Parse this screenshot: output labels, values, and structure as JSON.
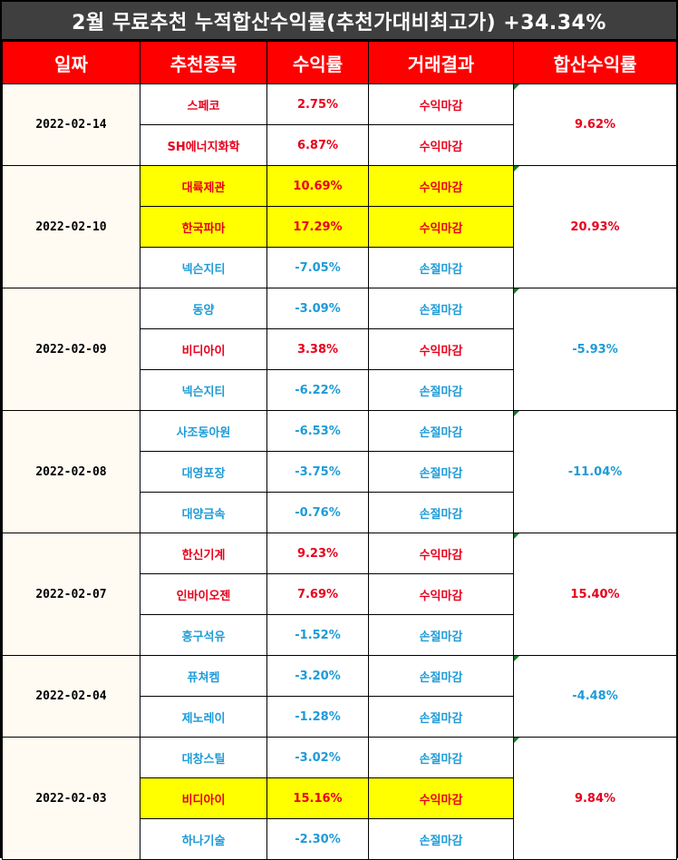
{
  "title": "2월 무료추천 누적합산수익률(추천가대비최고가) +34.34%",
  "headers": [
    "일짜",
    "추천종목",
    "수익률",
    "거래결과",
    "합산수익률"
  ],
  "colors": {
    "red": "#e8001c",
    "blue": "#1e9bd7",
    "highlight": "#ffff00",
    "header_bg": "#ff0000",
    "title_bg": "#3f3f3f"
  },
  "groups": [
    {
      "date": "2022-02-14",
      "total": "9.62%",
      "total_color": "red",
      "rows": [
        {
          "stock": "스페코",
          "ret": "2.75%",
          "result": "수익마감",
          "color": "red",
          "highlight": false
        },
        {
          "stock": "SH에너지화학",
          "ret": "6.87%",
          "result": "수익마감",
          "color": "red",
          "highlight": false
        }
      ]
    },
    {
      "date": "2022-02-10",
      "total": "20.93%",
      "total_color": "red",
      "rows": [
        {
          "stock": "대륙제관",
          "ret": "10.69%",
          "result": "수익마감",
          "color": "red",
          "highlight": true
        },
        {
          "stock": "한국파마",
          "ret": "17.29%",
          "result": "수익마감",
          "color": "red",
          "highlight": true
        },
        {
          "stock": "넥슨지티",
          "ret": "-7.05%",
          "result": "손절마감",
          "color": "blue",
          "highlight": false
        }
      ]
    },
    {
      "date": "2022-02-09",
      "total": "-5.93%",
      "total_color": "blue",
      "rows": [
        {
          "stock": "동양",
          "ret": "-3.09%",
          "result": "손절마감",
          "color": "blue",
          "highlight": false
        },
        {
          "stock": "비디아이",
          "ret": "3.38%",
          "result": "수익마감",
          "color": "red",
          "highlight": false
        },
        {
          "stock": "넥슨지티",
          "ret": "-6.22%",
          "result": "손절마감",
          "color": "blue",
          "highlight": false
        }
      ]
    },
    {
      "date": "2022-02-08",
      "total": "-11.04%",
      "total_color": "blue",
      "rows": [
        {
          "stock": "사조동아원",
          "ret": "-6.53%",
          "result": "손절마감",
          "color": "blue",
          "highlight": false
        },
        {
          "stock": "대영포장",
          "ret": "-3.75%",
          "result": "손절마감",
          "color": "blue",
          "highlight": false
        },
        {
          "stock": "대양금속",
          "ret": "-0.76%",
          "result": "손절마감",
          "color": "blue",
          "highlight": false
        }
      ]
    },
    {
      "date": "2022-02-07",
      "total": "15.40%",
      "total_color": "red",
      "rows": [
        {
          "stock": "한신기계",
          "ret": "9.23%",
          "result": "수익마감",
          "color": "red",
          "highlight": false
        },
        {
          "stock": "인바이오젠",
          "ret": "7.69%",
          "result": "수익마감",
          "color": "red",
          "highlight": false
        },
        {
          "stock": "흥구석유",
          "ret": "-1.52%",
          "result": "손절마감",
          "color": "blue",
          "highlight": false
        }
      ]
    },
    {
      "date": "2022-02-04",
      "total": "-4.48%",
      "total_color": "blue",
      "rows": [
        {
          "stock": "퓨쳐켐",
          "ret": "-3.20%",
          "result": "손절마감",
          "color": "blue",
          "highlight": false
        },
        {
          "stock": "제노레이",
          "ret": "-1.28%",
          "result": "손절마감",
          "color": "blue",
          "highlight": false
        }
      ]
    },
    {
      "date": "2022-02-03",
      "total": "9.84%",
      "total_color": "red",
      "rows": [
        {
          "stock": "대창스틸",
          "ret": "-3.02%",
          "result": "손절마감",
          "color": "blue",
          "highlight": false
        },
        {
          "stock": "비디아이",
          "ret": "15.16%",
          "result": "수익마감",
          "color": "red",
          "highlight": true
        },
        {
          "stock": "하나기술",
          "ret": "-2.30%",
          "result": "손절마감",
          "color": "blue",
          "highlight": false
        }
      ]
    }
  ]
}
